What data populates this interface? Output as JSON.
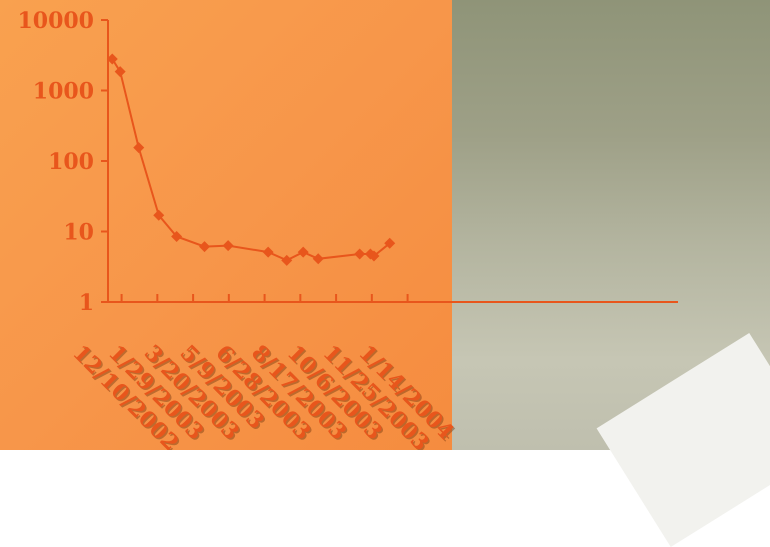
{
  "chart_data": {
    "type": "line",
    "title": "",
    "xlabel": "",
    "ylabel": "",
    "y_scale": "log",
    "ylim": [
      1,
      10000
    ],
    "xlim": [
      "2002-11-21",
      "2004-01-14"
    ],
    "y_ticks": [
      "10000",
      "1000",
      "100",
      "10",
      "1"
    ],
    "x_ticks": [
      "12/10/2002",
      "1/29/2003",
      "3/20/2003",
      "5/9/2003",
      "6/28/2003",
      "8/17/2003",
      "10/6/2003",
      "11/25/2003",
      "1/14/2004"
    ],
    "grid": false,
    "legend": "none",
    "series": [
      {
        "color": "#e8561c",
        "marker": "diamond",
        "points": [
          {
            "x": "2002-11-27",
            "y": 2800
          },
          {
            "x": "2002-12-08",
            "y": 1850
          },
          {
            "x": "2003-01-03",
            "y": 155
          },
          {
            "x": "2003-01-31",
            "y": 17
          },
          {
            "x": "2003-02-25",
            "y": 8.5
          },
          {
            "x": "2003-04-05",
            "y": 6.1
          },
          {
            "x": "2003-05-08",
            "y": 6.3
          },
          {
            "x": "2003-07-03",
            "y": 5.1
          },
          {
            "x": "2003-07-29",
            "y": 3.9
          },
          {
            "x": "2003-08-21",
            "y": 5.1
          },
          {
            "x": "2003-09-11",
            "y": 4.1
          },
          {
            "x": "2003-11-08",
            "y": 4.8
          },
          {
            "x": "2003-11-23",
            "y": 4.8
          },
          {
            "x": "2003-11-28",
            "y": 4.5
          },
          {
            "x": "2003-12-20",
            "y": 6.8
          }
        ]
      }
    ],
    "colors": {
      "axis": "#e8561c",
      "line": "#e8561c",
      "tick_text": "#e8561c",
      "label_shadow": "#7a3a10"
    }
  }
}
